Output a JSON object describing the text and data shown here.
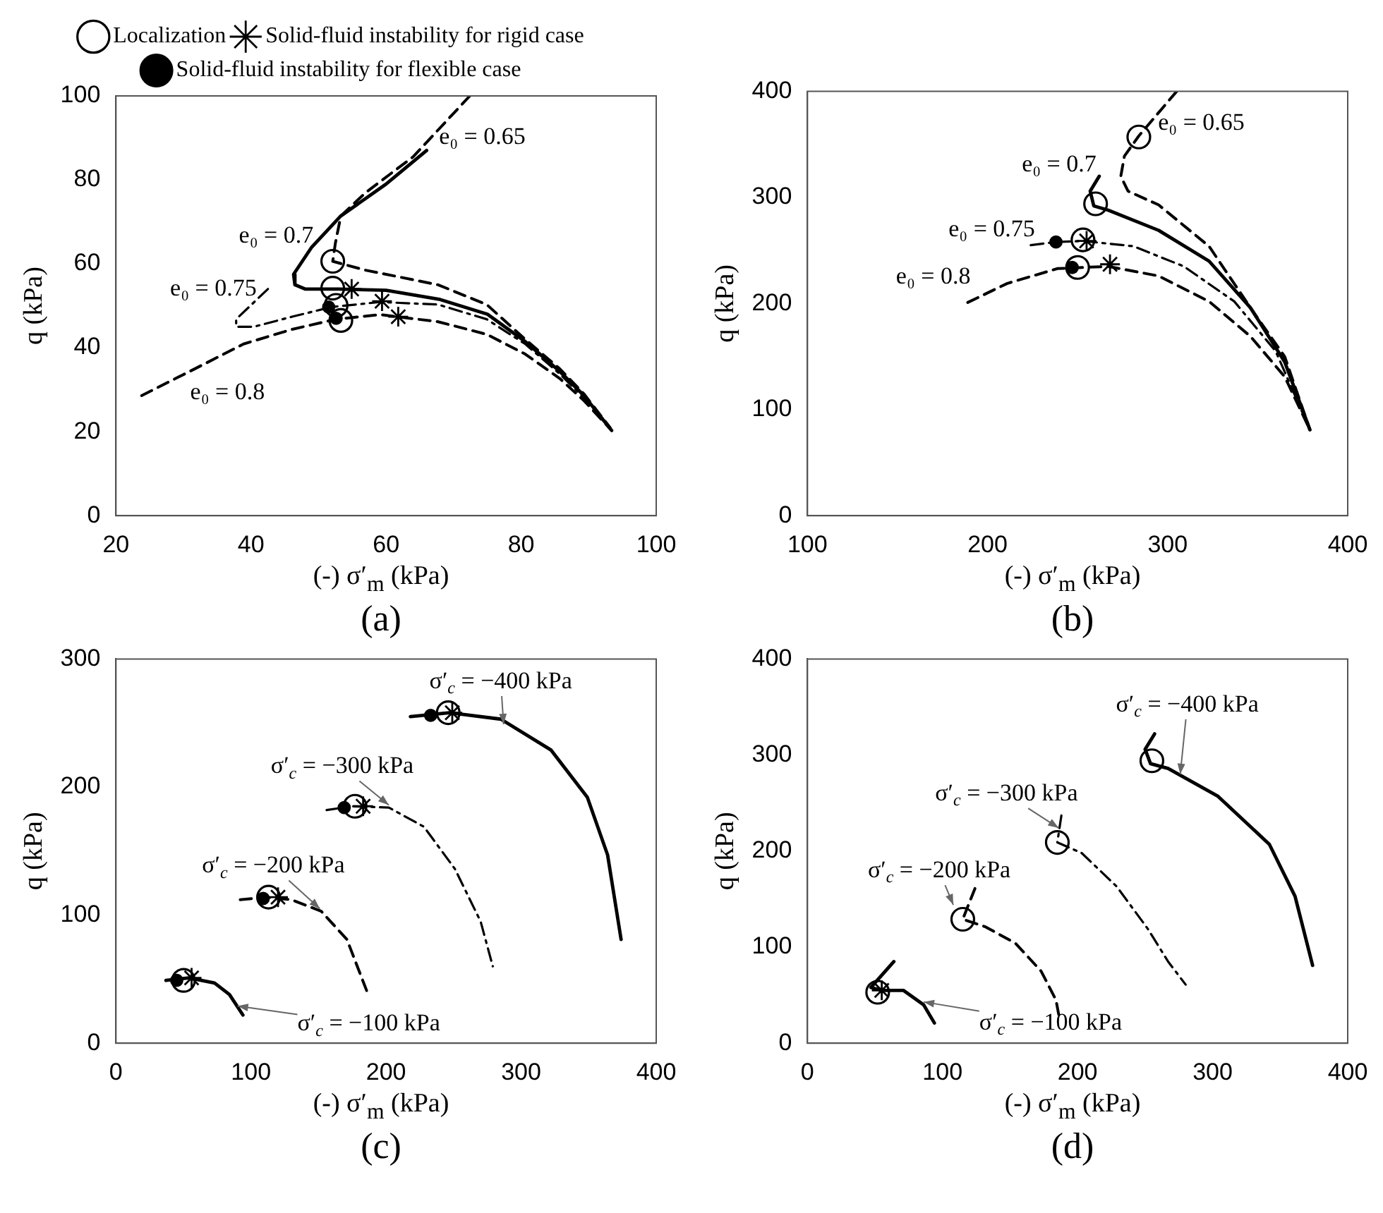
{
  "chart_data": [
    {
      "type": "line",
      "title": "(a)",
      "xlabel": "(-) σ′$_{m}$ (kPa)",
      "ylabel": "q (kPa)",
      "xlim": [
        20,
        100
      ],
      "xticks": [
        20,
        40,
        60,
        80,
        100
      ],
      "ylim": [
        0,
        100
      ],
      "yticks": [
        0,
        20,
        40,
        60,
        80,
        100
      ],
      "legend": "top",
      "series": [
        {
          "type": "line",
          "color": "#000000",
          "line_style": "dashed",
          "marker": "none",
          "x": [
            72.4,
            64,
            57,
            53.3,
            52.5,
            52.1,
            56.9,
            67.7,
            74.9,
            80.6,
            85.7,
            89.3,
            93.2
          ],
          "values": [
            100,
            85.5,
            77,
            71.4,
            65,
            60.6,
            58.5,
            55,
            50.3,
            42,
            35,
            29,
            20.9
          ]
        },
        {
          "type": "line",
          "color": "#000000",
          "line_style": "solid",
          "marker": "none",
          "x": [
            66,
            60,
            53.3,
            49,
            46.3,
            46.5,
            48,
            53,
            60,
            68,
            75,
            80.6,
            85.7,
            89.3,
            93.4
          ],
          "values": [
            87,
            79,
            71.4,
            64,
            57.5,
            55,
            54,
            54,
            53.7,
            51.5,
            48,
            41.5,
            34.4,
            28.6,
            20.3
          ]
        },
        {
          "type": "line",
          "color": "#000000",
          "line_style": "dashdot",
          "marker": "none",
          "x": [
            42.5,
            37.8,
            37.8,
            40.4,
            46.1,
            51.9,
            59.1,
            67.7,
            74.9,
            80.6,
            85.7,
            89.3,
            93.4
          ],
          "values": [
            54,
            46.8,
            45,
            45,
            47.4,
            49.7,
            50.9,
            50.3,
            46.8,
            40.9,
            33.8,
            28,
            20.3
          ]
        },
        {
          "type": "line",
          "color": "#000000",
          "line_style": "dashed",
          "marker": "none",
          "x": [
            23.8,
            31.7,
            38.9,
            46.1,
            52.6,
            59.1,
            67.7,
            74.9,
            80.6,
            85.7,
            89.3,
            93.4
          ],
          "values": [
            28.6,
            35,
            40.9,
            44.4,
            46.8,
            47.9,
            46.2,
            43.2,
            38.5,
            32.7,
            27.4,
            20.3
          ]
        },
        {
          "type": "scatter",
          "name": "Solid-fluid instability for rigid case",
          "color": "#000000",
          "marker": "cross",
          "x": [
            54.9,
            59.4,
            61.8
          ],
          "values": [
            54,
            51.1,
            47.4
          ]
        },
        {
          "type": "scatter",
          "name": "Solid-fluid instability for flexible case",
          "color": "#000000",
          "marker": "circle",
          "x": [
            51.5,
            52.6
          ],
          "values": [
            49.7,
            47
          ]
        },
        {
          "type": "scatter",
          "name": "Localization",
          "color": "#000000",
          "marker": "circle",
          "x": [
            52.1,
            52.1,
            52.6,
            53.3
          ],
          "values": [
            60.6,
            54.2,
            50.1,
            46.5
          ]
        }
      ],
      "annotations": [
        {
          "text": "e₀ = 0.65",
          "x": 67,
          "y": 90
        },
        {
          "text": "e₀ = 0.7",
          "x": 50.5,
          "y": 66.5
        },
        {
          "text": "e₀ = 0.75",
          "x": 42.5,
          "y": 54
        },
        {
          "text": "e₀ = 0.8",
          "x": 31,
          "y": 34
        }
      ]
    },
    {
      "type": "line",
      "title": "(b)",
      "xlabel": "(-) σ′$_{m}$ (kPa)",
      "ylabel": "q (kPa)",
      "xlim": [
        100,
        400
      ],
      "xticks": [
        100,
        200,
        300,
        400
      ],
      "ylim": [
        0,
        400
      ],
      "yticks": [
        0,
        100,
        200,
        300,
        400
      ],
      "series": [
        {
          "type": "line",
          "color": "#000000",
          "line_style": "dashed",
          "marker": "none",
          "x": [
            305,
            284,
            276,
            274,
            278,
            295,
            323,
            346,
            365,
            379
          ],
          "values": [
            400,
            358,
            339,
            320,
            306,
            293,
            254,
            196,
            150,
            81
          ]
        },
        {
          "type": "line",
          "color": "#000000",
          "line_style": "solid",
          "marker": "none",
          "x": [
            262,
            257,
            259,
            267,
            295,
            323,
            346,
            365,
            379
          ],
          "values": [
            320,
            306,
            292,
            288,
            269,
            240,
            196,
            145,
            81
          ]
        },
        {
          "type": "line",
          "color": "#000000",
          "line_style": "dashdot",
          "marker": "none",
          "x": [
            224,
            238,
            253,
            281,
            309,
            337,
            360,
            379
          ],
          "values": [
            255,
            258,
            259,
            254,
            235,
            202,
            155,
            81
          ]
        },
        {
          "type": "line",
          "color": "#000000",
          "line_style": "dashed",
          "marker": "none",
          "x": [
            189,
            211,
            239,
            267,
            295,
            323,
            346,
            365,
            379
          ],
          "values": [
            201,
            219,
            233,
            235,
            226,
            202,
            169,
            131,
            81
          ]
        },
        {
          "type": "scatter",
          "color": "#000000",
          "marker": "cross",
          "x": [
            255,
            268
          ],
          "values": [
            259,
            237
          ]
        },
        {
          "type": "scatter",
          "color": "#000000",
          "marker": "circle",
          "x": [
            238,
            247
          ],
          "values": [
            258,
            234
          ]
        },
        {
          "type": "scatter",
          "color": "#000000",
          "marker": "circle",
          "x": [
            284,
            260,
            253,
            250
          ],
          "values": [
            357,
            294,
            260,
            234
          ]
        }
      ],
      "annotations": [
        {
          "text": "e₀ = 0.65",
          "x": 290,
          "y": 370
        },
        {
          "text": "e₀ = 0.7",
          "x": 262,
          "y": 320
        },
        {
          "text": "e₀ = 0.75",
          "x": 224,
          "y": 255
        },
        {
          "text": "e₀ = 0.8",
          "x": 189,
          "y": 201
        }
      ]
    },
    {
      "type": "line",
      "title": "(c)",
      "xlabel": "(-) σ′$_{m}$ (kPa)",
      "ylabel": "q (kPa)",
      "xlim": [
        0,
        400
      ],
      "xticks": [
        0,
        100,
        200,
        300,
        400
      ],
      "ylim": [
        0,
        300
      ],
      "yticks": [
        0,
        100,
        200,
        300
      ],
      "series": [
        {
          "type": "line",
          "color": "#000000",
          "line_style": "solid",
          "marker": "none",
          "x": [
            218,
            247,
            285,
            322,
            349,
            364,
            374
          ],
          "values": [
            255,
            258,
            253,
            229,
            192,
            147,
            81
          ]
        },
        {
          "type": "line",
          "color": "#000000",
          "line_style": "dashdot",
          "marker": "none",
          "x": [
            156,
            175,
            202,
            228,
            251,
            270,
            279
          ],
          "values": [
            182,
            185,
            184,
            169,
            136,
            95,
            60
          ]
        },
        {
          "type": "line",
          "color": "#000000",
          "line_style": "dashed",
          "marker": "none",
          "x": [
            92,
            111,
            130,
            152,
            171,
            186
          ],
          "values": [
            112,
            114,
            112,
            103,
            81,
            40
          ]
        },
        {
          "type": "line",
          "color": "#000000",
          "line_style": "solid",
          "marker": "none",
          "x": [
            37,
            54,
            73,
            84,
            94
          ],
          "values": [
            49,
            51,
            47,
            38,
            22
          ]
        },
        {
          "type": "scatter",
          "color": "#000000",
          "marker": "cross",
          "x": [
            249,
            183,
            120,
            56
          ],
          "values": [
            258,
            185,
            114,
            51
          ]
        },
        {
          "type": "scatter",
          "color": "#000000",
          "marker": "circle",
          "x": [
            233,
            169,
            109,
            45
          ],
          "values": [
            256,
            184,
            113,
            49
          ]
        },
        {
          "type": "scatter",
          "color": "#000000",
          "marker": "circle",
          "x": [
            246,
            177,
            113,
            50
          ],
          "values": [
            258,
            185,
            114,
            49
          ]
        }
      ],
      "annotations": [
        {
          "text": "σ′$_{c}$ = −400 kPa",
          "x": 287,
          "y": 249
        },
        {
          "text": "σ′$_{c}$ = −300 kPa",
          "x": 202,
          "y": 186
        },
        {
          "text": "σ′$_{c}$ = −200 kPa",
          "x": 151,
          "y": 105
        },
        {
          "text": "σ′$_{c}$ = −100 kPa",
          "x": 90,
          "y": 29
        }
      ]
    },
    {
      "type": "line",
      "title": "(d)",
      "xlabel": "(-) σ′$_{m}$ (kPa)",
      "ylabel": "q (kPa)",
      "xlim": [
        0,
        400
      ],
      "xticks": [
        0,
        100,
        200,
        300,
        400
      ],
      "ylim": [
        0,
        400
      ],
      "yticks": [
        0,
        100,
        200,
        300,
        400
      ],
      "series": [
        {
          "type": "line",
          "color": "#000000",
          "line_style": "solid",
          "marker": "none",
          "x": [
            257,
            250,
            254,
            267,
            304,
            342,
            361,
            374
          ],
          "values": [
            322,
            306,
            291,
            286,
            257,
            207,
            153,
            81
          ]
        },
        {
          "type": "line",
          "color": "#000000",
          "line_style": "dashdot",
          "marker": "none",
          "x": [
            188,
            185,
            203,
            229,
            252,
            267,
            280
          ],
          "values": [
            237,
            209,
            198,
            163,
            119,
            85,
            61
          ]
        },
        {
          "type": "line",
          "color": "#000000",
          "line_style": "dashed",
          "marker": "none",
          "x": [
            124,
            115,
            132,
            154,
            173,
            184,
            186
          ],
          "values": [
            161,
            129,
            121,
            104,
            75,
            45,
            30
          ]
        },
        {
          "type": "line",
          "color": "#000000",
          "line_style": "solid",
          "marker": "none",
          "x": [
            64,
            47,
            55,
            71,
            86,
            94
          ],
          "values": [
            85,
            58,
            55,
            55,
            40,
            21
          ]
        },
        {
          "type": "scatter",
          "color": "#000000",
          "marker": "cross",
          "x": [
            55
          ],
          "values": [
            55
          ]
        },
        {
          "type": "scatter",
          "color": "#000000",
          "marker": "circle",
          "x": [
            255,
            185,
            115,
            52
          ],
          "values": [
            294,
            209,
            129,
            53
          ]
        }
      ],
      "annotations": [
        {
          "text": "σ′$_{c}$ = −400 kPa",
          "x": 276,
          "y": 280
        },
        {
          "text": "σ′$_{c}$ = −300 kPa",
          "x": 186,
          "y": 224
        },
        {
          "text": "σ′$_{c}$ = −200 kPa",
          "x": 108,
          "y": 144
        },
        {
          "text": "σ′$_{c}$ = −100 kPa",
          "x": 86,
          "y": 43
        }
      ]
    }
  ]
}
